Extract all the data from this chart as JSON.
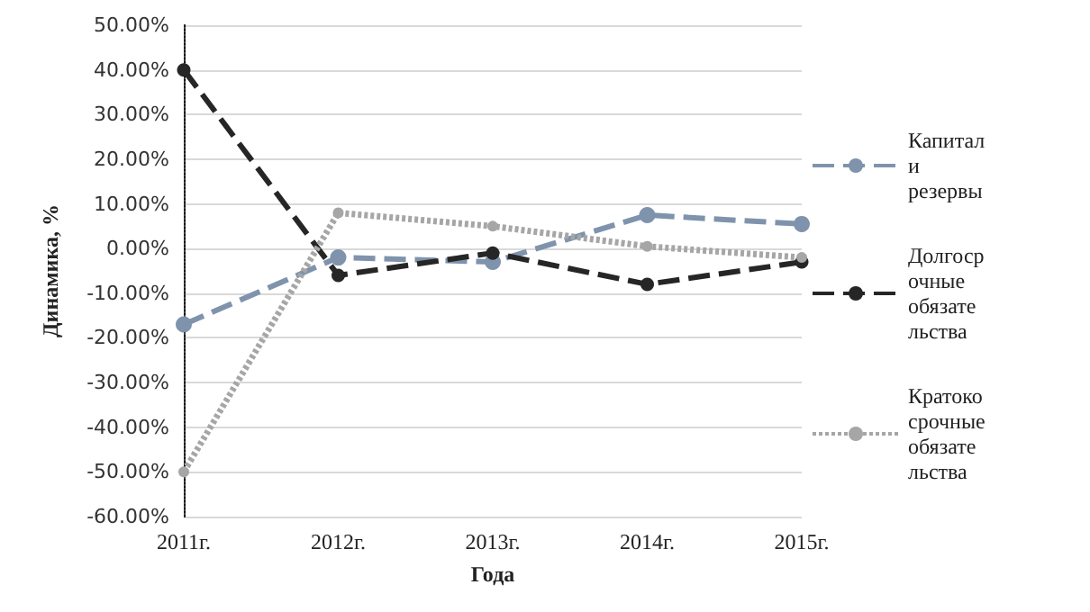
{
  "chart_data": {
    "type": "line",
    "xlabel": "Года",
    "ylabel": "Динамика, %",
    "categories": [
      "2011г.",
      "2012г.",
      "2013г.",
      "2014г.",
      "2015г."
    ],
    "series": [
      {
        "name": "Капитал и резервы",
        "color": "#7f93ad",
        "line_style": "dashed",
        "values": [
          -17,
          -2,
          -3,
          7.5,
          5.5
        ]
      },
      {
        "name": "Долгосрочные обязательства",
        "color": "#262626",
        "line_style": "dashed",
        "values": [
          40,
          -6,
          -1,
          -8,
          -3
        ]
      },
      {
        "name": "Кратокосрочные обязательства",
        "color": "#a6a6a6",
        "line_style": "dotted",
        "values": [
          -50,
          8,
          5,
          0.5,
          -2
        ]
      }
    ],
    "ylim": [
      -60,
      50
    ],
    "yticks": [
      {
        "value": -60,
        "label": "-60.00%"
      },
      {
        "value": -50,
        "label": "-50.00%"
      },
      {
        "value": -40,
        "label": "-40.00%"
      },
      {
        "value": -30,
        "label": "-30.00%"
      },
      {
        "value": -20,
        "label": "-20.00%"
      },
      {
        "value": -10,
        "label": "-10.00%"
      },
      {
        "value": 0,
        "label": "0.00%"
      },
      {
        "value": 10,
        "label": "10.00%"
      },
      {
        "value": 20,
        "label": "20.00%"
      },
      {
        "value": 30,
        "label": "30.00%"
      },
      {
        "value": 40,
        "label": "40.00%"
      },
      {
        "value": 50,
        "label": "50.00%"
      }
    ],
    "grid": "y",
    "legend": "right",
    "marker": "circle"
  }
}
